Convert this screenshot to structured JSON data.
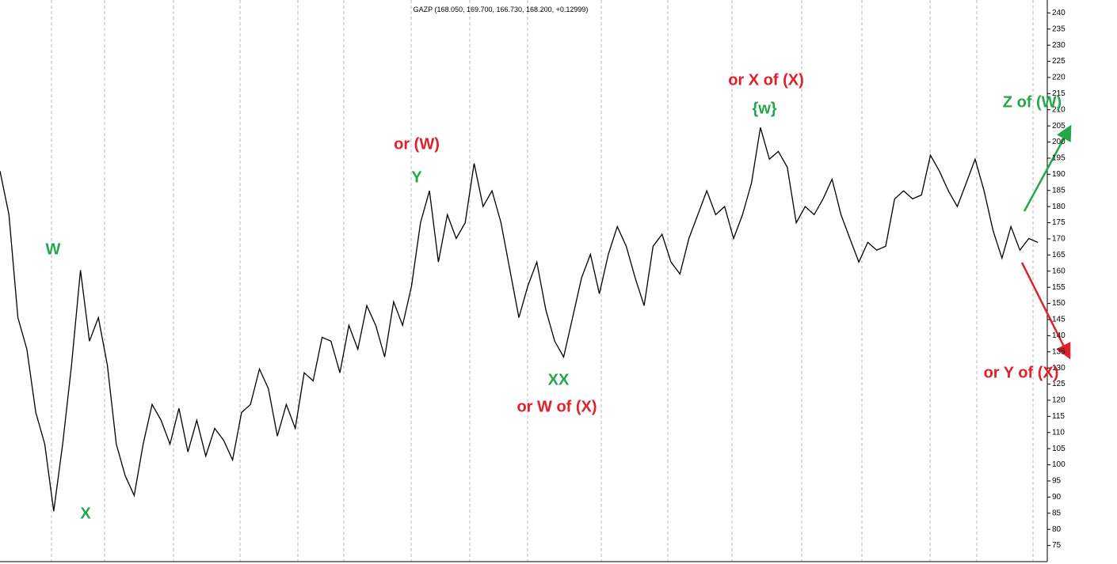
{
  "chart_data": {
    "type": "line",
    "title": "GAZP (168.050, 169.700, 166.730, 168.200, +0.12999)",
    "color": "#000000",
    "values": [
      191.0,
      177.5,
      145.6,
      135.8,
      116.2,
      106.4,
      85.6,
      106.4,
      130.9,
      160.3,
      138.3,
      145.6,
      130.9,
      106.4,
      96.6,
      90.5,
      106.4,
      118.7,
      113.8,
      106.4,
      117.5,
      104.0,
      113.8,
      102.7,
      111.3,
      107.6,
      101.5,
      116.2,
      118.7,
      129.7,
      123.6,
      108.9,
      118.7,
      111.3,
      128.5,
      126.0,
      139.5,
      138.3,
      128.5,
      143.2,
      135.8,
      149.3,
      143.2,
      133.4,
      150.5,
      143.2,
      155.4,
      175.0,
      184.9,
      162.8,
      177.5,
      170.1,
      175.0,
      193.4,
      180.0,
      184.9,
      175.0,
      160.3,
      145.6,
      155.4,
      162.8,
      148.1,
      138.3,
      133.4,
      145.6,
      157.9,
      165.2,
      153.0,
      165.2,
      173.8,
      167.7,
      157.9,
      149.3,
      167.7,
      171.4,
      162.8,
      159.1,
      170.1,
      177.5,
      184.9,
      177.5,
      180.0,
      170.1,
      177.5,
      187.3,
      204.5,
      194.7,
      197.1,
      192.2,
      175.0,
      180.0,
      177.5,
      182.4,
      188.5,
      177.5,
      170.1,
      162.8,
      168.9,
      166.5,
      167.7,
      182.4,
      184.9,
      182.4,
      183.6,
      195.9,
      191.0,
      184.9,
      180.0,
      187.3,
      194.7,
      184.9,
      172.6,
      164.0,
      173.8,
      166.5,
      170.1,
      168.9
    ],
    "ylim": [
      70,
      244
    ],
    "yticks": [
      75,
      80,
      85,
      90,
      95,
      100,
      105,
      110,
      115,
      120,
      125,
      130,
      135,
      140,
      145,
      150,
      155,
      160,
      165,
      170,
      175,
      180,
      185,
      190,
      195,
      200,
      205,
      210,
      215,
      220,
      225,
      230,
      235,
      240
    ],
    "annotations": [
      {
        "text": "W",
        "color": "#22a84a"
      },
      {
        "text": "X",
        "color": "#22a84a"
      },
      {
        "text": "or (W)",
        "color": "#e0202a"
      },
      {
        "text": "Y",
        "color": "#22a84a"
      },
      {
        "text": "XX",
        "color": "#22a84a"
      },
      {
        "text": "or W of (X)",
        "color": "#e0202a"
      },
      {
        "text": "or X of (X)",
        "color": "#e0202a"
      },
      {
        "text": "{w}",
        "color": "#22a84a"
      },
      {
        "text": "Z of (W)",
        "color": "#22a84a"
      },
      {
        "text": "or Y of (X)",
        "color": "#e0202a"
      }
    ]
  }
}
